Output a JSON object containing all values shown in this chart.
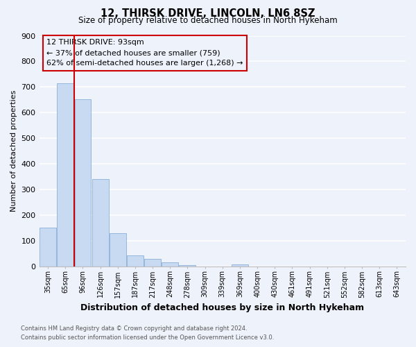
{
  "title_line1": "12, THIRSK DRIVE, LINCOLN, LN6 8SZ",
  "title_line2": "Size of property relative to detached houses in North Hykeham",
  "bar_labels": [
    "35sqm",
    "65sqm",
    "96sqm",
    "126sqm",
    "157sqm",
    "187sqm",
    "217sqm",
    "248sqm",
    "278sqm",
    "309sqm",
    "339sqm",
    "369sqm",
    "400sqm",
    "430sqm",
    "461sqm",
    "491sqm",
    "521sqm",
    "552sqm",
    "582sqm",
    "613sqm",
    "643sqm"
  ],
  "bar_values": [
    152,
    714,
    652,
    340,
    130,
    42,
    30,
    15,
    5,
    0,
    0,
    7,
    0,
    0,
    0,
    0,
    0,
    0,
    0,
    0,
    0
  ],
  "bar_color": "#c8daf2",
  "bar_edgecolor": "#8ab0d8",
  "ylabel": "Number of detached properties",
  "xlabel": "Distribution of detached houses by size in North Hykeham",
  "ylim": [
    0,
    900
  ],
  "yticks": [
    0,
    100,
    200,
    300,
    400,
    500,
    600,
    700,
    800,
    900
  ],
  "property_label": "12 THIRSK DRIVE: 93sqm",
  "annotation_line1": "← 37% of detached houses are smaller (759)",
  "annotation_line2": "62% of semi-detached houses are larger (1,268) →",
  "vline_color": "#cc0000",
  "vline_x_idx": 2,
  "annotation_box_edgecolor": "#cc0000",
  "footer_line1": "Contains HM Land Registry data © Crown copyright and database right 2024.",
  "footer_line2": "Contains public sector information licensed under the Open Government Licence v3.0.",
  "background_color": "#eef2fb",
  "grid_color": "#ffffff"
}
